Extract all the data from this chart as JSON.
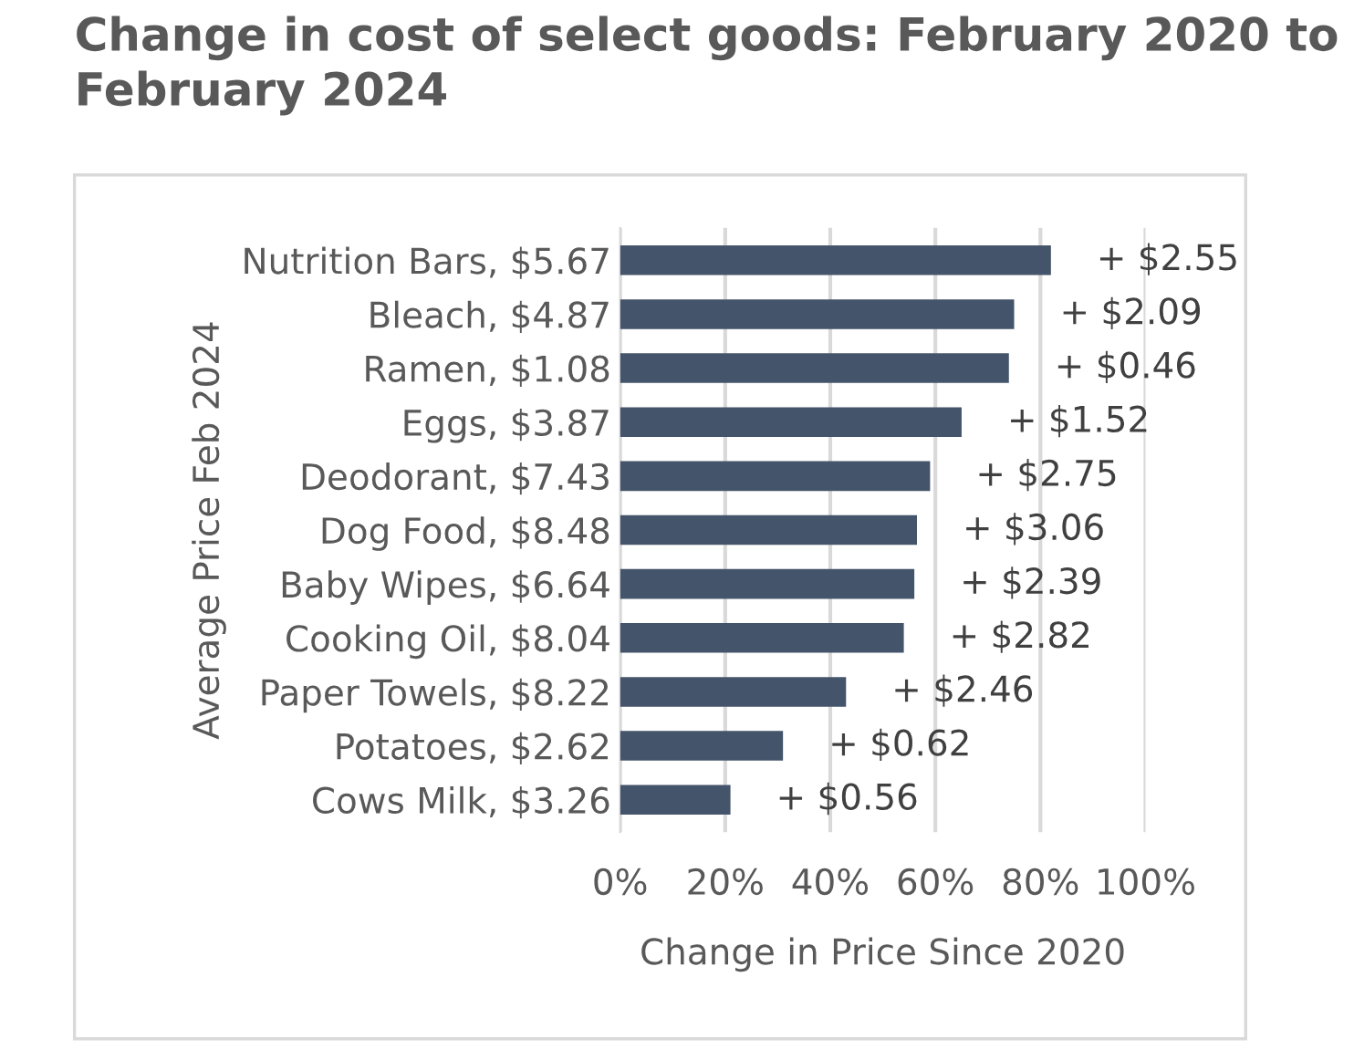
{
  "chart_data": {
    "type": "bar",
    "orientation": "horizontal",
    "title": "Change in cost of select goods: February 2020 to February 2024",
    "xlabel": "Change in Price Since 2020",
    "ylabel": "Average Price Feb 2024",
    "categories": [
      "Nutrition Bars, $5.67",
      "Bleach, $4.87",
      "Ramen, $1.08",
      "Eggs, $3.87",
      "Deodorant, $7.43",
      "Dog Food, $8.48",
      "Baby Wipes, $6.64",
      "Cooking Oil, $8.04",
      "Paper Towels, $8.22",
      "Potatoes, $2.62",
      "Cows Milk, $3.26"
    ],
    "values": [
      82,
      75,
      74,
      65,
      59,
      56.5,
      56,
      54,
      43,
      31,
      21
    ],
    "annotations": [
      {
        "text": "+ $2.55",
        "x": 82,
        "y": "Nutrition Bars, $5.67"
      },
      {
        "text": "+ $2.09",
        "x": 75,
        "y": "Bleach, $4.87"
      },
      {
        "text": "+ $0.46",
        "x": 74,
        "y": "Ramen, $1.08"
      },
      {
        "text": "+ $1.52",
        "x": 65,
        "y": "Eggs, $3.87"
      },
      {
        "text": "+ $2.75",
        "x": 59,
        "y": "Deodorant, $7.43"
      },
      {
        "text": "+ $3.06",
        "x": 56.5,
        "y": "Dog Food, $8.48"
      },
      {
        "text": "+ $2.39",
        "x": 56,
        "y": "Baby Wipes, $6.64"
      },
      {
        "text": "+ $2.82",
        "x": 54,
        "y": "Cooking Oil, $8.04"
      },
      {
        "text": "+ $2.46",
        "x": 43,
        "y": "Paper Towels, $8.22"
      },
      {
        "text": "+ $0.62",
        "x": 31,
        "y": "Potatoes, $2.62"
      },
      {
        "text": "+ $0.56",
        "x": 21,
        "y": "Cows Milk, $3.26"
      }
    ],
    "color": "#44546a",
    "xlim": [
      0,
      100
    ],
    "xticks": [
      {
        "value": 0,
        "label": "0%"
      },
      {
        "value": 20,
        "label": "20%"
      },
      {
        "value": 40,
        "label": "40%"
      },
      {
        "value": 60,
        "label": "60%"
      },
      {
        "value": 80,
        "label": "80%"
      },
      {
        "value": 100,
        "label": "100%"
      }
    ],
    "grid": "x",
    "legend": false
  }
}
